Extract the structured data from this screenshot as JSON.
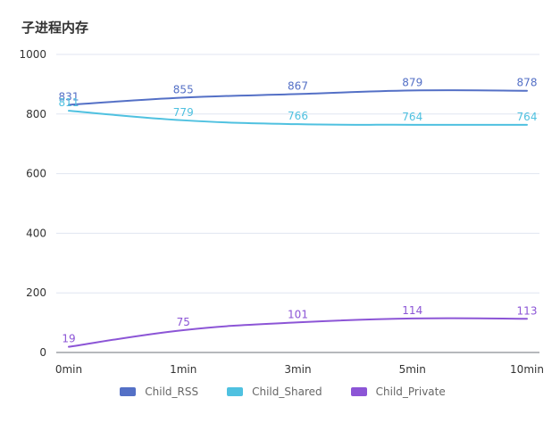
{
  "chart_data": {
    "type": "line",
    "title": "子进程内存",
    "categories": [
      "0min",
      "1min",
      "3min",
      "5min",
      "10min"
    ],
    "ylim": [
      0,
      1000
    ],
    "yticks": [
      0,
      200,
      400,
      600,
      800,
      1000
    ],
    "grid": true,
    "legend_position": "bottom",
    "series": [
      {
        "name": "Child_RSS",
        "color": "#5470c6",
        "values": [
          831,
          855,
          867,
          879,
          878
        ]
      },
      {
        "name": "Child_Shared",
        "color": "#4fc1e0",
        "values": [
          811,
          779,
          766,
          764,
          764
        ]
      },
      {
        "name": "Child_Private",
        "color": "#8c55d6",
        "values": [
          19,
          75,
          101,
          114,
          113
        ]
      }
    ]
  }
}
